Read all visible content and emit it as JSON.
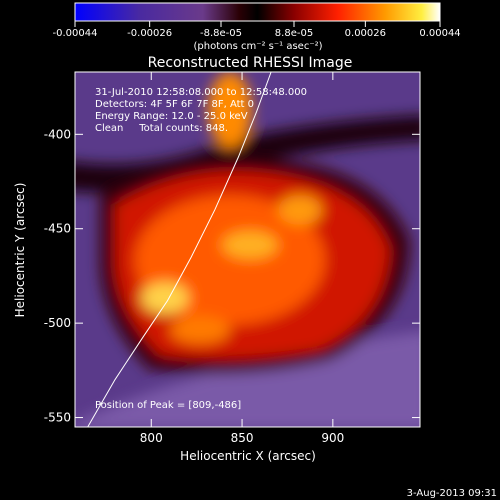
{
  "chart_data": {
    "type": "heatmap",
    "title": "Reconstructed RHESSI Image",
    "xlabel": "Heliocentric X (arcsec)",
    "ylabel": "Heliocentric Y (arcsec)",
    "xlim": [
      758,
      948
    ],
    "ylim": [
      -555,
      -367
    ],
    "x_ticks": [
      800,
      850,
      900
    ],
    "y_ticks": [
      -550,
      -500,
      -450,
      -400
    ],
    "colorbar": {
      "range": [
        -0.00044,
        0.00044
      ],
      "tick_values": [
        -0.00044,
        -0.00026,
        -8.8e-05,
        8.8e-05,
        0.00026,
        0.00044
      ],
      "tick_labels": [
        "-0.00044",
        "-0.00026",
        "-8.8e-05",
        "8.8e-05",
        "0.00026",
        "0.00044"
      ],
      "units": "(photons cm⁻² s⁻¹ asec⁻²)"
    },
    "annotations": [
      "31-Jul-2010 12:58:08.000 to 12:58:48.000",
      "Detectors: 4F 5F 6F 7F 8F, Att 0",
      "Energy Range: 12.0 - 25.0 keV",
      "Clean     Total counts: 848."
    ],
    "peak_label": "Position of Peak = [809,-486]",
    "peak": [
      809,
      -486
    ],
    "limb_curve": [
      [
        765,
        -555
      ],
      [
        780,
        -530
      ],
      [
        795,
        -508
      ],
      [
        809,
        -488
      ],
      [
        822,
        -465
      ],
      [
        835,
        -440
      ],
      [
        848,
        -412
      ],
      [
        858,
        -388
      ],
      [
        866,
        -367
      ]
    ],
    "colors": {
      "background": "#000000",
      "text": "#ffffff"
    }
  },
  "footer": {
    "date": "3-Aug-2013 09:31"
  }
}
